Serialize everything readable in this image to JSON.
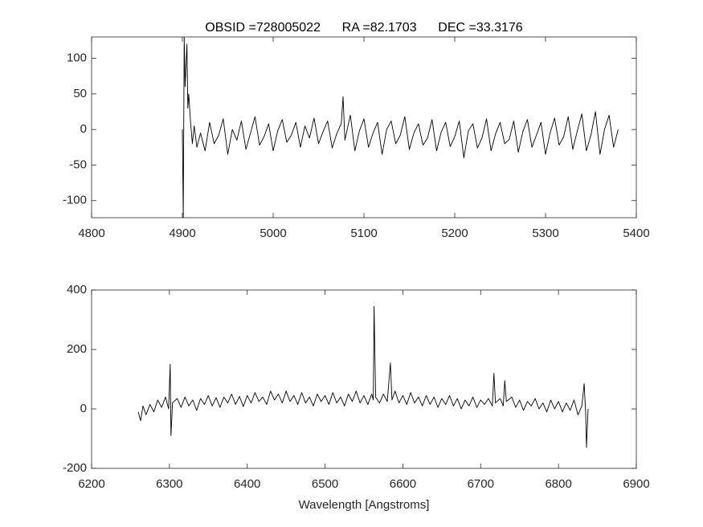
{
  "chart_data": [
    {
      "type": "line",
      "title": "OBSID =728005022      RA =82.1703      DEC =33.3176",
      "xlim": [
        4800,
        5400
      ],
      "xticks": [
        4800,
        4900,
        5000,
        5100,
        5200,
        5300,
        5400
      ],
      "ylim": [
        -124,
        130
      ],
      "yticks": [
        -100,
        -50,
        0,
        50,
        100
      ],
      "series": [
        {
          "color": "#000000",
          "x": [
            4900,
            4901,
            4902,
            4903,
            4905,
            4906,
            4907,
            4909,
            4911,
            4913,
            4916,
            4920,
            4925,
            4930,
            4935,
            4940,
            4945,
            4950,
            4955,
            4960,
            4965,
            4970,
            4975,
            4980,
            4985,
            4990,
            4995,
            5000,
            5005,
            5010,
            5015,
            5020,
            5025,
            5030,
            5035,
            5040,
            5045,
            5050,
            5055,
            5060,
            5065,
            5070,
            5075,
            5077,
            5079,
            5085,
            5090,
            5095,
            5100,
            5105,
            5110,
            5115,
            5120,
            5125,
            5130,
            5135,
            5140,
            5145,
            5150,
            5155,
            5160,
            5165,
            5170,
            5175,
            5180,
            5185,
            5190,
            5195,
            5200,
            5205,
            5210,
            5215,
            5220,
            5225,
            5230,
            5235,
            5240,
            5245,
            5250,
            5255,
            5260,
            5265,
            5270,
            5275,
            5280,
            5285,
            5290,
            5295,
            5300,
            5305,
            5310,
            5315,
            5320,
            5325,
            5330,
            5335,
            5340,
            5345,
            5350,
            5355,
            5360,
            5365,
            5370,
            5375,
            5380
          ],
          "values": [
            0,
            -124,
            130,
            60,
            120,
            30,
            50,
            10,
            -20,
            5,
            -25,
            -5,
            -30,
            10,
            -20,
            -8,
            15,
            -35,
            0,
            -15,
            12,
            -28,
            -5,
            18,
            -22,
            -10,
            8,
            -30,
            -2,
            14,
            -18,
            -8,
            10,
            -25,
            5,
            -12,
            16,
            -20,
            -3,
            12,
            -26,
            -6,
            8,
            46,
            -15,
            20,
            -30,
            -2,
            15,
            -25,
            -5,
            10,
            -35,
            0,
            12,
            -20,
            -8,
            18,
            -28,
            -5,
            8,
            -22,
            -12,
            14,
            -30,
            -4,
            10,
            -24,
            -10,
            12,
            -40,
            -2,
            8,
            -26,
            -12,
            15,
            -30,
            -6,
            10,
            -20,
            -14,
            12,
            -32,
            -3,
            14,
            -25,
            -8,
            10,
            -35,
            -5,
            16,
            -22,
            -10,
            18,
            -28,
            -2,
            22,
            -30,
            -8,
            25,
            -35,
            0,
            20,
            -25,
            0
          ]
        }
      ]
    },
    {
      "type": "line",
      "xlabel": "Wavelength [Angstroms]",
      "xlim": [
        6200,
        6900
      ],
      "xticks": [
        6200,
        6300,
        6400,
        6500,
        6600,
        6700,
        6800,
        6900
      ],
      "ylim": [
        -200,
        400
      ],
      "yticks": [
        -200,
        0,
        200,
        400
      ],
      "series": [
        {
          "color": "#000000",
          "x": [
            6260,
            6263,
            6266,
            6270,
            6275,
            6280,
            6285,
            6290,
            6295,
            6299,
            6301,
            6302,
            6304,
            6310,
            6315,
            6320,
            6325,
            6330,
            6335,
            6340,
            6345,
            6350,
            6355,
            6360,
            6365,
            6370,
            6375,
            6380,
            6385,
            6390,
            6395,
            6400,
            6405,
            6410,
            6415,
            6420,
            6425,
            6430,
            6435,
            6440,
            6445,
            6450,
            6455,
            6460,
            6465,
            6470,
            6475,
            6480,
            6485,
            6490,
            6495,
            6500,
            6505,
            6510,
            6515,
            6520,
            6525,
            6530,
            6535,
            6540,
            6545,
            6550,
            6555,
            6560,
            6562,
            6563,
            6565,
            6570,
            6575,
            6580,
            6584,
            6586,
            6590,
            6595,
            6600,
            6605,
            6610,
            6615,
            6620,
            6625,
            6630,
            6635,
            6640,
            6645,
            6650,
            6655,
            6660,
            6665,
            6670,
            6675,
            6680,
            6685,
            6690,
            6695,
            6700,
            6705,
            6710,
            6715,
            6717,
            6719,
            6725,
            6729,
            6731,
            6733,
            6740,
            6745,
            6750,
            6755,
            6760,
            6765,
            6770,
            6775,
            6780,
            6785,
            6790,
            6795,
            6800,
            6805,
            6810,
            6815,
            6820,
            6825,
            6830,
            6833,
            6835,
            6836,
            6838
          ],
          "values": [
            -10,
            -40,
            10,
            -20,
            15,
            -10,
            30,
            5,
            40,
            0,
            150,
            -90,
            20,
            35,
            5,
            40,
            10,
            30,
            -5,
            35,
            15,
            45,
            10,
            38,
            5,
            40,
            20,
            50,
            15,
            42,
            8,
            45,
            20,
            55,
            25,
            40,
            15,
            60,
            30,
            50,
            20,
            60,
            25,
            45,
            15,
            55,
            20,
            40,
            10,
            50,
            25,
            45,
            15,
            55,
            20,
            40,
            10,
            50,
            25,
            60,
            20,
            45,
            15,
            50,
            30,
            345,
            40,
            20,
            50,
            25,
            155,
            30,
            60,
            20,
            45,
            15,
            55,
            20,
            40,
            10,
            45,
            15,
            40,
            5,
            35,
            15,
            45,
            10,
            35,
            0,
            30,
            10,
            40,
            5,
            30,
            15,
            35,
            10,
            120,
            20,
            35,
            10,
            95,
            25,
            40,
            5,
            30,
            -5,
            25,
            10,
            35,
            0,
            20,
            -10,
            30,
            0,
            25,
            -10,
            20,
            -5,
            30,
            -20,
            10,
            85,
            -20,
            -130,
            0
          ]
        }
      ]
    }
  ]
}
